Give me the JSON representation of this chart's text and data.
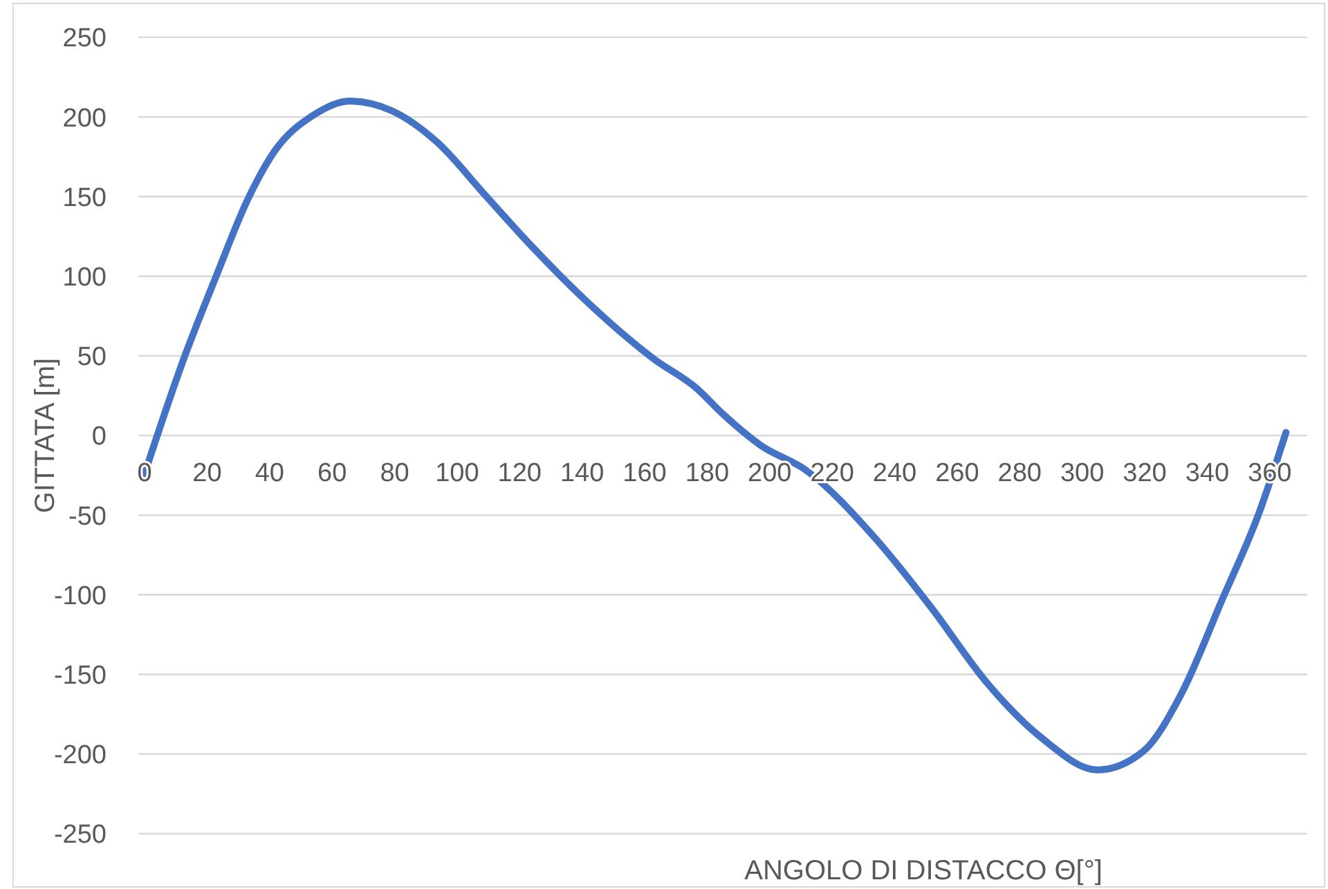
{
  "chart_data": {
    "type": "line",
    "xlabel": "ANGOLO DI DISTACCO Θ[°]",
    "ylabel": "GITTATA [m]",
    "x": [
      0,
      12.5,
      22.9,
      33.2,
      41.4,
      53.9,
      65.7,
      79,
      93.7,
      108.5,
      123.3,
      141,
      163,
      176.4,
      185.3,
      197,
      211.8,
      234,
      251.7,
      269.4,
      287.1,
      304.9,
      319.7,
      331.5,
      344.8,
      356.7,
      365.2
    ],
    "series": [
      {
        "color": "#4472c4",
        "values": [
          -24,
          48,
          100,
          149,
          178,
          201,
          210,
          204,
          184,
          152,
          120,
          85,
          48,
          30,
          13,
          -6,
          -22,
          -65,
          -108,
          -155,
          -190,
          -210,
          -198,
          -163,
          -103,
          -48,
          2
        ]
      }
    ],
    "xlim": [
      -2,
      372
    ],
    "xticks": [
      0,
      20,
      40,
      60,
      80,
      100,
      120,
      140,
      160,
      180,
      200,
      220,
      240,
      260,
      280,
      300,
      320,
      340,
      360
    ],
    "ylim": [
      -250,
      250
    ],
    "yticks": [
      -250,
      -200,
      -150,
      -100,
      -50,
      0,
      50,
      100,
      150,
      200,
      250
    ],
    "grid": "y",
    "marker": "none",
    "line_style": "solid"
  }
}
